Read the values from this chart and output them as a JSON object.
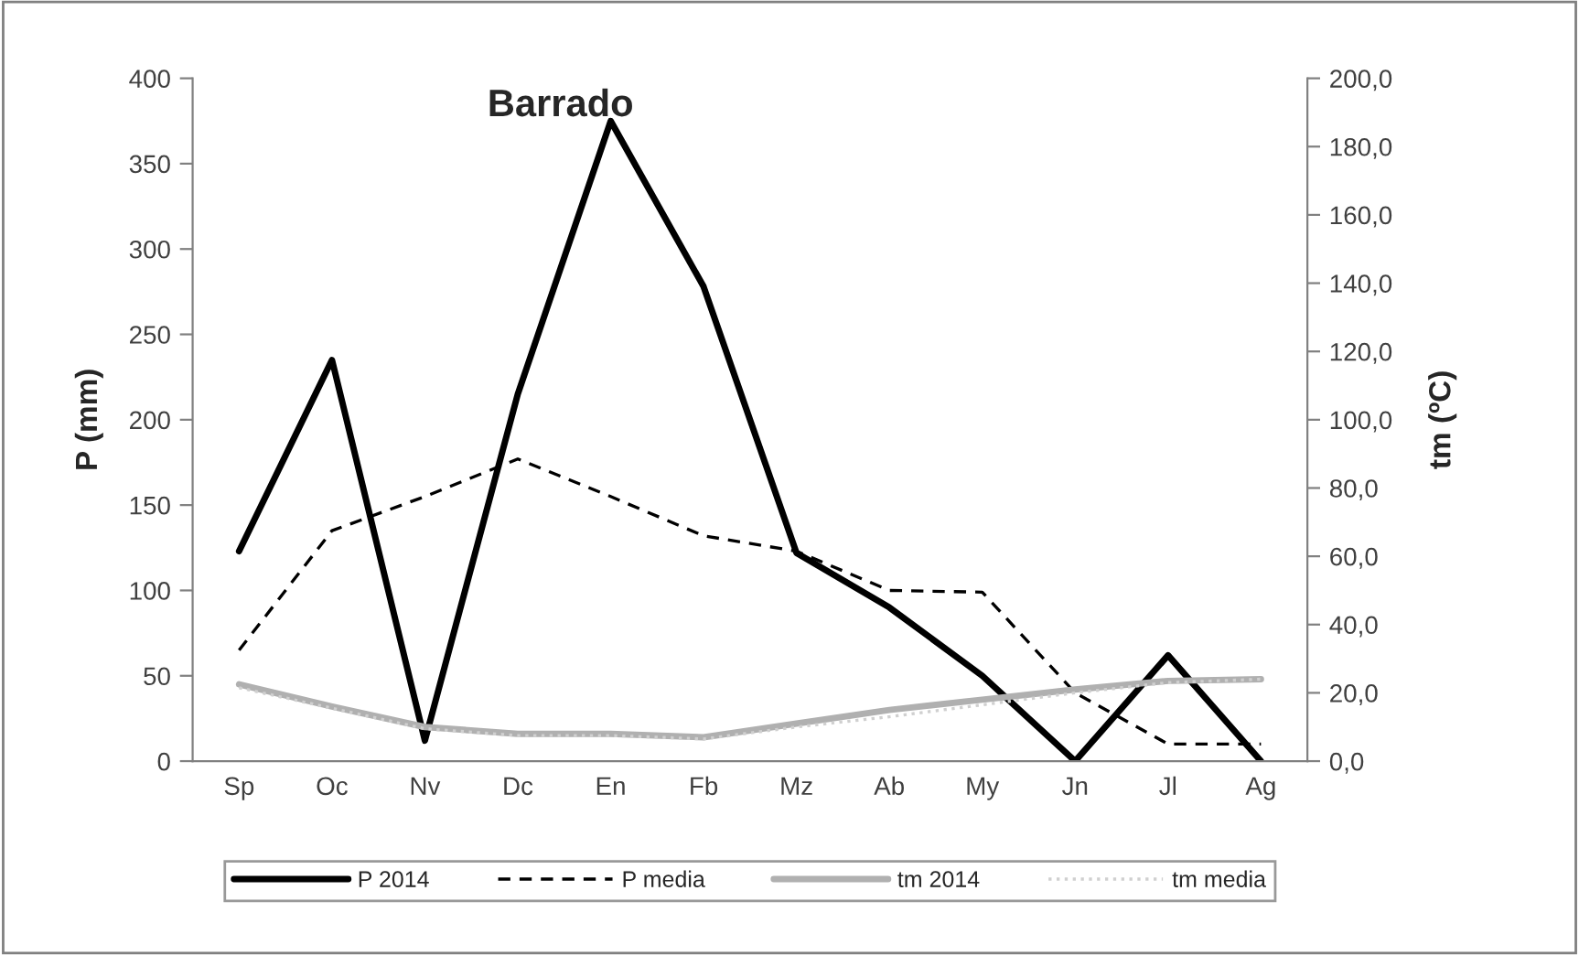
{
  "chart_data": {
    "type": "line",
    "title": "Barrado",
    "ylabel": "P (mm)",
    "y2label": "tm (ºC)",
    "categories": [
      "Sp",
      "Oc",
      "Nv",
      "Dc",
      "En",
      "Fb",
      "Mz",
      "Ab",
      "My",
      "Jn",
      "Jl",
      "Ag"
    ],
    "ylim": [
      0,
      400
    ],
    "yticks": [
      0,
      50,
      100,
      150,
      200,
      250,
      300,
      350,
      400
    ],
    "y2lim": [
      0,
      200
    ],
    "y2ticks": [
      {
        "value": 0,
        "label": "0,0"
      },
      {
        "value": 20,
        "label": "20,0"
      },
      {
        "value": 40,
        "label": "40,0"
      },
      {
        "value": 60,
        "label": "60,0"
      },
      {
        "value": 80,
        "label": "80,0"
      },
      {
        "value": 100,
        "label": "100,0"
      },
      {
        "value": 120,
        "label": "120,0"
      },
      {
        "value": 140,
        "label": "140,0"
      },
      {
        "value": 160,
        "label": "160,0"
      },
      {
        "value": 180,
        "label": "180,0"
      },
      {
        "value": 200,
        "label": "200,0"
      }
    ],
    "grid": false,
    "legend": "bottom",
    "marker": "none",
    "series": [
      {
        "name": "P 2014",
        "color": "#000000",
        "line_style": "solid",
        "values": [
          123,
          235,
          12,
          215,
          375,
          278,
          122,
          90,
          50,
          0,
          62,
          0
        ]
      },
      {
        "name": "P media",
        "color": "#000000",
        "line_style": "dashed",
        "values": [
          65,
          135,
          155,
          177,
          155,
          132,
          123,
          100,
          99,
          40,
          10,
          10
        ]
      },
      {
        "name": "tm 2014",
        "color": "#b0b0b0",
        "line_style": "solid",
        "axis": "y2",
        "values": [
          22.5,
          16,
          10,
          8,
          8,
          7,
          11,
          15,
          18,
          21,
          23.5,
          24
        ]
      },
      {
        "name": "tm media",
        "color": "#d0d0d0",
        "line_style": "dotted",
        "axis": "y2",
        "values": [
          21.5,
          15.5,
          9.5,
          7.5,
          7.5,
          6.5,
          10,
          13,
          16.5,
          20,
          23,
          24
        ]
      }
    ]
  }
}
